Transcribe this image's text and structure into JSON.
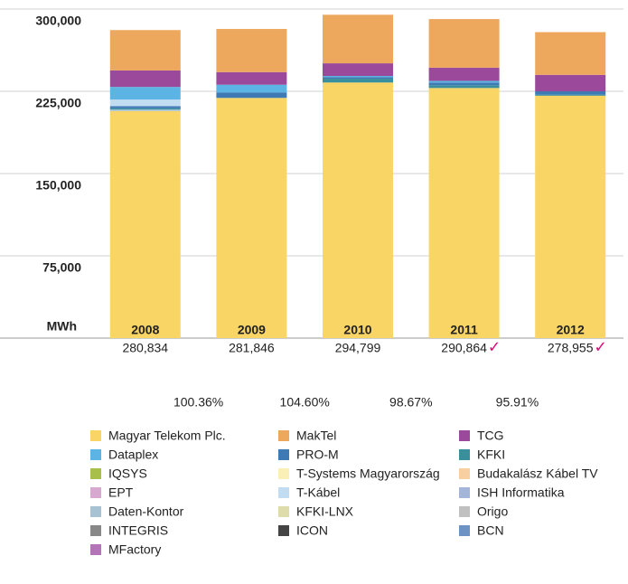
{
  "chart_data": {
    "type": "stacked_bar",
    "y_axis_label": "MWh",
    "categories": [
      "2008",
      "2009",
      "2010",
      "2011",
      "2012"
    ],
    "totals": [
      280834,
      281846,
      294799,
      290864,
      278955
    ],
    "total_labels": [
      "280,834",
      "281,846",
      "294,799",
      "290,864",
      "278,955"
    ],
    "checked": [
      false,
      false,
      false,
      true,
      true
    ],
    "check_mark": "✓",
    "check_color": "#e20074",
    "growth_labels": [
      "100.36%",
      "104.60%",
      "98.67%",
      "95.91%"
    ],
    "ylim": [
      0,
      300000
    ],
    "yticks": [
      {
        "value": 75000,
        "label": "75,000"
      },
      {
        "value": 150000,
        "label": "150,000"
      },
      {
        "value": 225000,
        "label": "225,000"
      },
      {
        "value": 300000,
        "label": "300,000"
      }
    ],
    "grid": true,
    "series": [
      {
        "name": "Magyar Telekom Plc.",
        "color": "#f9d566",
        "values": [
          207000,
          219000,
          233000,
          228000,
          221000
        ]
      },
      {
        "name": "Daten-Kontor",
        "color": "#a7c2d3",
        "values": [
          1500,
          0,
          0,
          0,
          0
        ]
      },
      {
        "name": "KFKI",
        "color": "#3a8f9c",
        "values": [
          1000,
          0,
          3500,
          2500,
          1000
        ]
      },
      {
        "name": "PRO-M",
        "color": "#3f7ab5",
        "values": [
          2000,
          5000,
          1500,
          2500,
          3000
        ]
      },
      {
        "name": "T-Kábel",
        "color": "#c2dcf2",
        "values": [
          6000,
          0,
          0,
          0,
          0
        ]
      },
      {
        "name": "Dataplex",
        "color": "#5cb4e4",
        "values": [
          11500,
          7000,
          1000,
          1500,
          0
        ]
      },
      {
        "name": "IQSYS",
        "color": "#a8bf4a",
        "values": [
          0,
          0,
          0,
          0,
          0
        ]
      },
      {
        "name": "T-Systems Magyarország",
        "color": "#fbefb8",
        "values": [
          0,
          0,
          0,
          0,
          0
        ]
      },
      {
        "name": "Budakalász Kábel TV",
        "color": "#f8cfa0",
        "values": [
          0,
          0,
          0,
          0,
          0
        ]
      },
      {
        "name": "EPT",
        "color": "#d7a8d0",
        "values": [
          0,
          0,
          0,
          0,
          0
        ]
      },
      {
        "name": "ISH Informatika",
        "color": "#a3b5d8",
        "values": [
          0,
          0,
          0,
          0,
          0
        ]
      },
      {
        "name": "KFKI-LNX",
        "color": "#dedcaa",
        "values": [
          0,
          0,
          0,
          0,
          0
        ]
      },
      {
        "name": "Origo",
        "color": "#c0c0c0",
        "values": [
          0,
          0,
          0,
          0,
          0
        ]
      },
      {
        "name": "INTEGRIS",
        "color": "#888888",
        "values": [
          0,
          0,
          0,
          0,
          0
        ]
      },
      {
        "name": "ICON",
        "color": "#444444",
        "values": [
          0,
          0,
          0,
          0,
          0
        ]
      },
      {
        "name": "BCN",
        "color": "#6c93c3",
        "values": [
          0,
          0,
          0,
          0,
          0
        ]
      },
      {
        "name": "MFactory",
        "color": "#b574b9",
        "values": [
          0,
          0,
          0,
          0,
          0
        ]
      },
      {
        "name": "TCG",
        "color": "#9b4a9b",
        "values": [
          15000,
          11500,
          11500,
          12000,
          15000
        ]
      },
      {
        "name": "MakTel",
        "color": "#eda85e",
        "values": [
          36834,
          39346,
          44299,
          44364,
          38955
        ]
      }
    ],
    "legend_order": [
      0,
      18,
      17,
      5,
      3,
      2,
      6,
      7,
      8,
      9,
      4,
      10,
      1,
      11,
      12,
      13,
      14,
      15,
      16
    ]
  }
}
